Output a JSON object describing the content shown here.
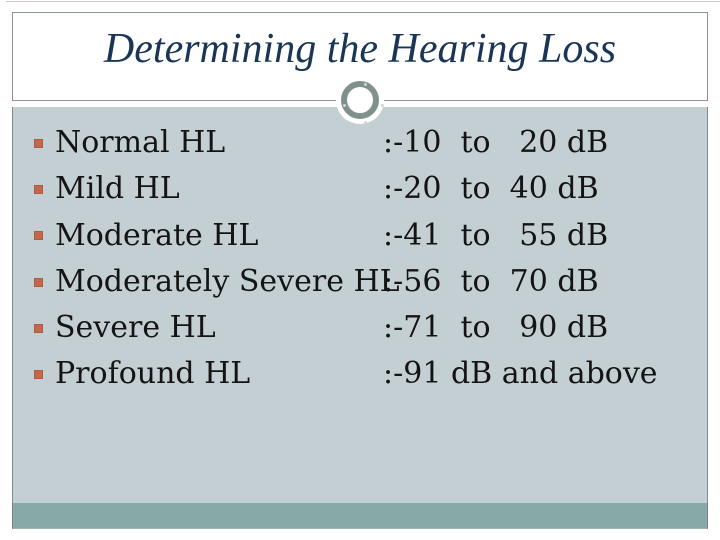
{
  "slide": {
    "title": "Determining the Hearing Loss",
    "list": {
      "items": [
        {
          "label": "Normal HL",
          "range": ":-10  to   20 dB"
        },
        {
          "label": "Mild HL",
          "range": ":-20  to  40 dB"
        },
        {
          "label": "Moderate HL",
          "range": ":-41  to   55 dB"
        },
        {
          "label": "Moderately Severe HL",
          "range": ":-56  to  70 dB"
        },
        {
          "label": "Severe HL",
          "range": ":-71  to   90 dB"
        },
        {
          "label": "Profound HL",
          "range": ":-91 dB and above"
        }
      ]
    },
    "colors": {
      "title_text": "#1a3556",
      "body_text": "#141414",
      "main_background": "#c4cfd3",
      "footer_band": "#87a9a8",
      "bullet_square": "#c3674d",
      "ornament_ring": "#80918d",
      "box_border": "#8a9696"
    }
  }
}
